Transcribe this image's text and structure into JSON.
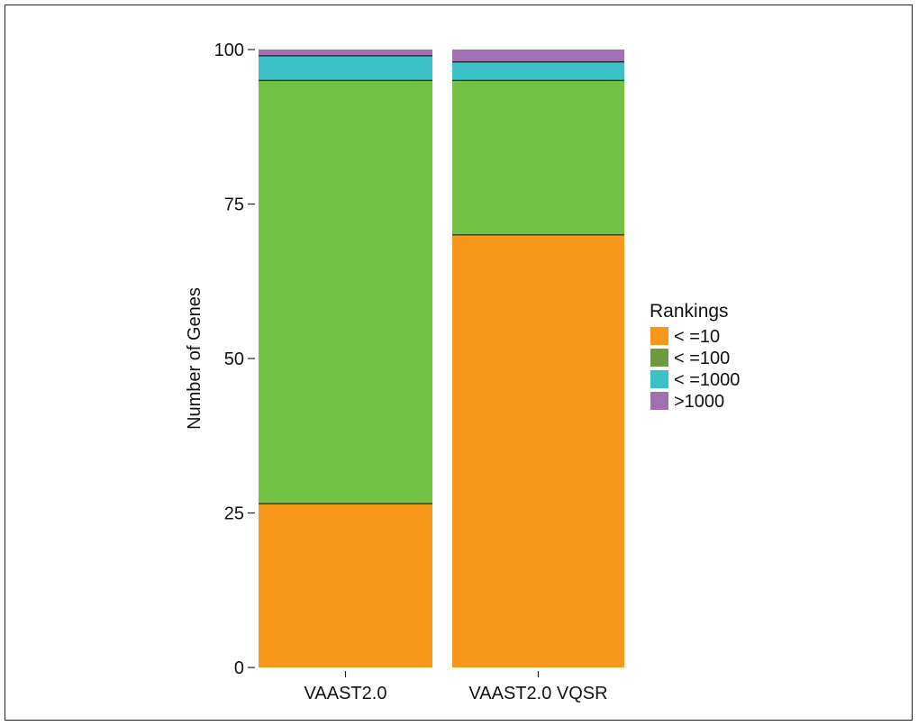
{
  "chart_data": {
    "type": "bar",
    "stacked": true,
    "categories": [
      "VAAST2.0",
      "VAAST2.0 VQSR"
    ],
    "ylabel": "Number of Genes",
    "xlabel": "",
    "ylim": [
      0,
      100
    ],
    "yticks": [
      0,
      25,
      50,
      75,
      100
    ],
    "grid": false,
    "legend": {
      "title": "Rankings",
      "position": "right"
    },
    "series": [
      {
        "name": "< =10",
        "color": "#f7981d",
        "values": [
          26.5,
          70
        ]
      },
      {
        "name": "< =100",
        "color": "#72c044",
        "values": [
          68.5,
          25
        ]
      },
      {
        "name": "< =1000",
        "color": "#3ac2c6",
        "values": [
          4,
          3
        ]
      },
      {
        "name": ">1000",
        "color": "#a070b0",
        "values": [
          1,
          2
        ]
      }
    ],
    "legend_swatch_colors": [
      "#f7981d",
      "#6c9a42",
      "#3ac2c6",
      "#a070b0"
    ]
  }
}
